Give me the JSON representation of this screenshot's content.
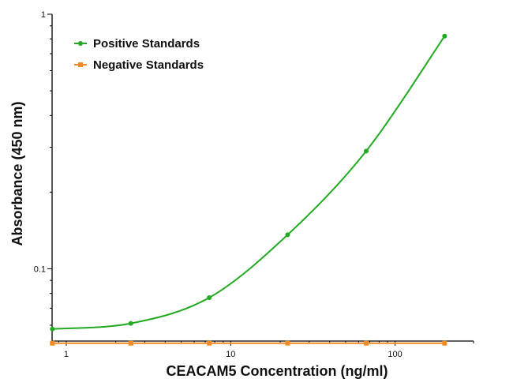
{
  "chart_data": {
    "type": "scatter",
    "title": "",
    "xlabel": "CEACAM5 Concentration (ng/ml)",
    "ylabel": "Absorbance (450 nm)",
    "xscale": "log",
    "yscale": "log",
    "xlim": [
      0.82,
      300
    ],
    "ylim": [
      0.052,
      1
    ],
    "x_ticks": [
      1,
      10,
      100
    ],
    "x_tick_labels": [
      "1",
      "10",
      "100"
    ],
    "y_ticks": [
      0.1,
      1
    ],
    "y_tick_labels": [
      "0.1",
      "1"
    ],
    "legend_position": "top-left",
    "grid": false,
    "series": [
      {
        "name": "Positive Standards",
        "color": "#22aa22",
        "marker": "circle",
        "fit": "smooth-curve",
        "x": [
          0.823,
          2.47,
          7.41,
          22.2,
          66.7,
          200
        ],
        "y": [
          0.058,
          0.061,
          0.077,
          0.136,
          0.29,
          0.82
        ]
      },
      {
        "name": "Negative Standards",
        "color": "#f08a24",
        "marker": "square",
        "fit": "line",
        "x": [
          0.823,
          2.47,
          7.41,
          22.2,
          66.7,
          200
        ],
        "y": [
          0.051,
          0.051,
          0.051,
          0.051,
          0.051,
          0.051
        ]
      }
    ]
  }
}
